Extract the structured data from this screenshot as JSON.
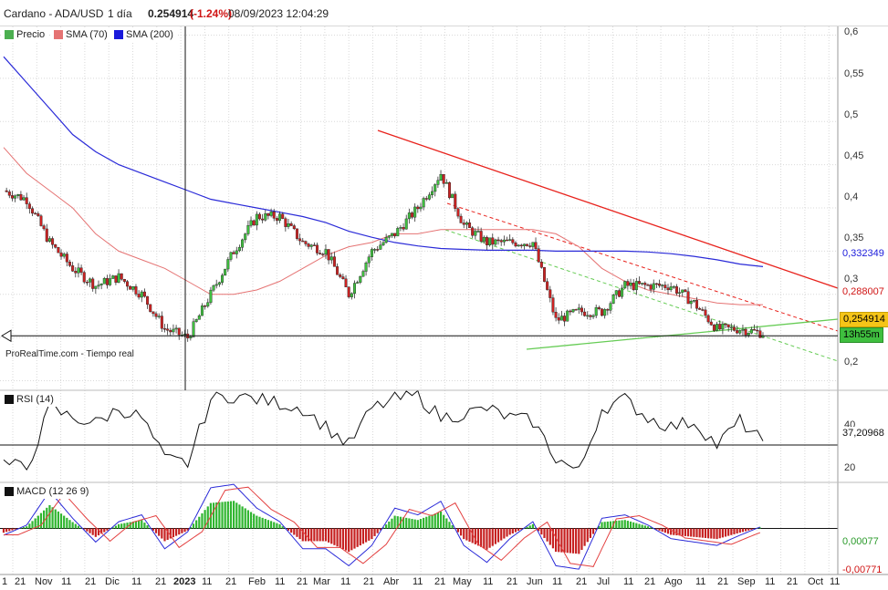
{
  "header": {
    "symbol": "Cardano - ADA/USD",
    "interval": "1 día",
    "last": "0.254914",
    "change": "(-1.24%)",
    "datetime": "08/09/2023 12:04:29"
  },
  "legend": {
    "price": {
      "label": "Precio",
      "color": "#4caf50"
    },
    "sma70": {
      "label": "SMA (70)",
      "color": "#e57373"
    },
    "sma200": {
      "label": "SMA (200)",
      "color": "#1a1adb"
    }
  },
  "watermark": {
    "source": "ProRealTime.com",
    "realtime": "- Tiempo real"
  },
  "price_labels": {
    "sma200": "0,332349",
    "sma70": "0,288007",
    "last": "0,254914",
    "timer": "13h55m"
  },
  "rsi_panel": {
    "title": "RSI (14)",
    "value": "37,20968",
    "tick_40": "40",
    "tick_20": "20"
  },
  "macd_panel": {
    "title": "MACD (12 26 9)",
    "value1": "0,00077",
    "value2": "-0,00771"
  },
  "price_axis": [
    "0,6",
    "0,55",
    "0,5",
    "0,45",
    "0,4",
    "0,35",
    "0,3",
    "0,2"
  ],
  "x_axis": [
    "1",
    "21",
    "Nov",
    "11",
    "21",
    "Dic",
    "11",
    "21",
    "2023",
    "11",
    "21",
    "Feb",
    "11",
    "21",
    "Mar",
    "11",
    "21",
    "Abr",
    "11",
    "21",
    "May",
    "11",
    "21",
    "Jun",
    "11",
    "21",
    "Jul",
    "11",
    "21",
    "Ago",
    "11",
    "21",
    "Sep",
    "11",
    "21",
    "Oct",
    "11"
  ],
  "colors": {
    "up": "#3fbf3f",
    "down": "#cc2222",
    "trend_red": "#e8221c",
    "trend_green": "#66cc55",
    "sma70": "#e57373",
    "sma200": "#2a2ad8"
  },
  "chart_data": [
    {
      "type": "candlestick",
      "title": "Cardano - ADA/USD",
      "ylim": [
        0.19,
        0.61
      ],
      "y_ticks": [
        0.2,
        0.25,
        0.3,
        0.35,
        0.4,
        0.45,
        0.5,
        0.55,
        0.6
      ],
      "x": [
        "Oct 1",
        "Oct 21",
        "Nov 1",
        "Nov 11",
        "Nov 21",
        "Dic 1",
        "Dic 11",
        "Dic 21",
        "2023",
        "Ene 11",
        "Ene 21",
        "Feb 1",
        "Feb 11",
        "Feb 21",
        "Mar 1",
        "Mar 11",
        "Mar 21",
        "Abr 1",
        "Abr 11",
        "Abr 21",
        "May 1",
        "May 11",
        "May 21",
        "Jun 1",
        "Jun 11",
        "Jun 21",
        "Jul 1",
        "Jul 11",
        "Jul 21",
        "Ago 1",
        "Ago 11",
        "Ago 21",
        "Sep 1",
        "Sep 8"
      ],
      "series": [
        {
          "name": "Precio",
          "values": [
            0.42,
            0.41,
            0.36,
            0.33,
            0.31,
            0.32,
            0.3,
            0.26,
            0.25,
            0.3,
            0.35,
            0.39,
            0.39,
            0.36,
            0.35,
            0.3,
            0.35,
            0.37,
            0.4,
            0.44,
            0.38,
            0.36,
            0.36,
            0.36,
            0.27,
            0.28,
            0.28,
            0.31,
            0.31,
            0.31,
            0.29,
            0.26,
            0.26,
            0.255
          ]
        },
        {
          "name": "SMA (70)",
          "values": [
            0.47,
            0.44,
            0.42,
            0.4,
            0.37,
            0.35,
            0.34,
            0.33,
            0.315,
            0.3,
            0.3,
            0.305,
            0.315,
            0.33,
            0.345,
            0.355,
            0.36,
            0.37,
            0.37,
            0.375,
            0.375,
            0.375,
            0.375,
            0.375,
            0.37,
            0.355,
            0.33,
            0.315,
            0.305,
            0.3,
            0.295,
            0.29,
            0.288,
            0.288
          ]
        },
        {
          "name": "SMA (200)",
          "values": [
            0.575,
            0.545,
            0.515,
            0.485,
            0.465,
            0.45,
            0.44,
            0.43,
            0.42,
            0.41,
            0.405,
            0.4,
            0.395,
            0.39,
            0.383,
            0.373,
            0.366,
            0.36,
            0.356,
            0.353,
            0.352,
            0.351,
            0.351,
            0.351,
            0.35,
            0.35,
            0.35,
            0.35,
            0.349,
            0.347,
            0.344,
            0.34,
            0.335,
            0.332
          ]
        }
      ],
      "last_value": 0.254914,
      "horizontal_line": 0.252
    },
    {
      "type": "line",
      "title": "RSI (14)",
      "ylim": [
        15,
        65
      ],
      "series": [
        {
          "name": "RSI (14)",
          "values": [
            25,
            22,
            55,
            50,
            47,
            55,
            50,
            27,
            25,
            60,
            62,
            60,
            58,
            55,
            45,
            35,
            55,
            60,
            62,
            50,
            52,
            55,
            50,
            48,
            28,
            20,
            55,
            60,
            50,
            45,
            48,
            35,
            48,
            37.2
          ]
        }
      ],
      "horizontal_line": 35
    },
    {
      "type": "bar",
      "title": "MACD (12 26 9)",
      "ylim": [
        -0.02,
        0.02
      ],
      "series": [
        {
          "name": "MACD (12 26 9)",
          "values": [
            -0.002,
            0.001,
            0.011,
            0.003,
            -0.004,
            0.002,
            0.004,
            -0.006,
            -0.001,
            0.012,
            0.013,
            0.006,
            0.002,
            -0.006,
            -0.006,
            -0.011,
            -0.005,
            0.006,
            0.004,
            0.008,
            -0.005,
            -0.01,
            -0.003,
            0.002,
            -0.011,
            -0.012,
            0.003,
            0.004,
            0.001,
            -0.003,
            -0.004,
            -0.005,
            -0.002,
            0.00077
          ]
        }
      ],
      "horizontal_line": 0
    }
  ]
}
